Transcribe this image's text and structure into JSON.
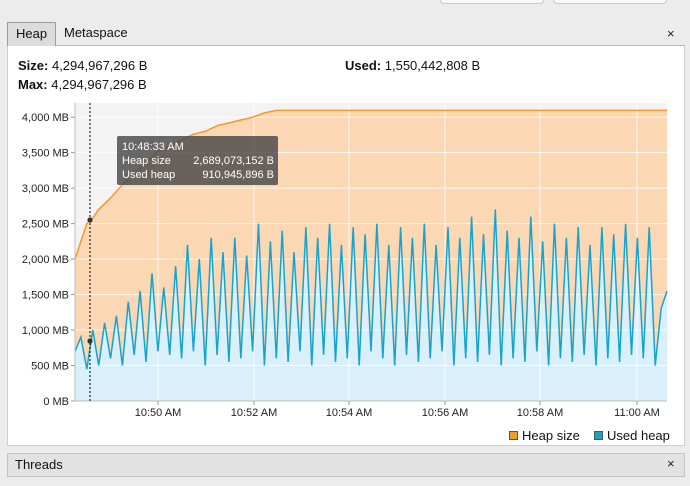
{
  "tabs": [
    {
      "label": "Heap"
    },
    {
      "label": "Metaspace"
    }
  ],
  "close_glyph": "×",
  "stats": {
    "size_label": "Size:",
    "size_value": "4,294,967,296 B",
    "max_label": "Max:",
    "max_value": "4,294,967,296 B",
    "used_label": "Used:",
    "used_value": "1,550,442,808 B"
  },
  "tooltip": {
    "time": "10:48:33 AM",
    "heap_label": "Heap size",
    "heap_value": "2,689,073,152 B",
    "used_label": "Used heap",
    "used_value": "910,945,896 B"
  },
  "legend": {
    "heap": "Heap size",
    "used": "Used heap"
  },
  "threads_label": "Threads",
  "colors": {
    "heap_line": "#f39a2b",
    "heap_fill": "#fbd7b4",
    "used_line": "#17a4cc",
    "used_fill": "#d9f0fa"
  },
  "chart_data": {
    "type": "area",
    "y_ticks": [
      "4,000 MB",
      "3,500 MB",
      "3,000 MB",
      "2,500 MB",
      "2,000 MB",
      "1,500 MB",
      "1,000 MB",
      "500 MB",
      "0 MB"
    ],
    "x_ticks": [
      "10:50 AM",
      "10:52 AM",
      "10:54 AM",
      "10:56 AM",
      "10:58 AM",
      "11:00 AM"
    ],
    "ylim": [
      0,
      4200
    ],
    "series": [
      {
        "name": "Heap size",
        "points": [
          [
            0,
            2000
          ],
          [
            1,
            2250
          ],
          [
            2,
            2500
          ],
          [
            3,
            2580
          ],
          [
            4,
            2700
          ],
          [
            6,
            2860
          ],
          [
            8,
            3050
          ],
          [
            10,
            3200
          ],
          [
            12,
            3360
          ],
          [
            14,
            3520
          ],
          [
            16,
            3600
          ],
          [
            18,
            3680
          ],
          [
            20,
            3760
          ],
          [
            22,
            3800
          ],
          [
            24,
            3880
          ],
          [
            26,
            3920
          ],
          [
            28,
            3960
          ],
          [
            30,
            4000
          ],
          [
            32,
            4060
          ],
          [
            34,
            4096
          ],
          [
            36,
            4096
          ],
          [
            38,
            4096
          ],
          [
            40,
            4096
          ],
          [
            44,
            4096
          ],
          [
            48,
            4096
          ],
          [
            52,
            4096
          ],
          [
            56,
            4096
          ],
          [
            60,
            4096
          ],
          [
            64,
            4096
          ],
          [
            68,
            4096
          ],
          [
            72,
            4096
          ],
          [
            76,
            4096
          ],
          [
            80,
            4096
          ],
          [
            84,
            4096
          ],
          [
            88,
            4096
          ],
          [
            92,
            4096
          ],
          [
            96,
            4096
          ],
          [
            100,
            4096
          ]
        ]
      },
      {
        "name": "Used heap",
        "points": [
          [
            0,
            700
          ],
          [
            1,
            900
          ],
          [
            2,
            450
          ],
          [
            3,
            1000
          ],
          [
            4,
            500
          ],
          [
            5,
            1100
          ],
          [
            6,
            600
          ],
          [
            7,
            1200
          ],
          [
            8,
            500
          ],
          [
            9,
            1400
          ],
          [
            10,
            650
          ],
          [
            11,
            1550
          ],
          [
            12,
            550
          ],
          [
            13,
            1800
          ],
          [
            14,
            700
          ],
          [
            15,
            1600
          ],
          [
            16,
            650
          ],
          [
            17,
            1900
          ],
          [
            18,
            600
          ],
          [
            19,
            2200
          ],
          [
            20,
            700
          ],
          [
            21,
            2000
          ],
          [
            22,
            500
          ],
          [
            23,
            2300
          ],
          [
            24,
            650
          ],
          [
            25,
            2100
          ],
          [
            26,
            550
          ],
          [
            27,
            2300
          ],
          [
            28,
            600
          ],
          [
            29,
            2050
          ],
          [
            30,
            700
          ],
          [
            31,
            2500
          ],
          [
            32,
            500
          ],
          [
            33,
            2250
          ],
          [
            34,
            600
          ],
          [
            35,
            2400
          ],
          [
            36,
            550
          ],
          [
            37,
            2100
          ],
          [
            38,
            700
          ],
          [
            39,
            2450
          ],
          [
            40,
            500
          ],
          [
            41,
            2300
          ],
          [
            42,
            650
          ],
          [
            43,
            2500
          ],
          [
            44,
            550
          ],
          [
            45,
            2200
          ],
          [
            46,
            600
          ],
          [
            47,
            2450
          ],
          [
            48,
            500
          ],
          [
            49,
            2350
          ],
          [
            50,
            700
          ],
          [
            51,
            2500
          ],
          [
            52,
            600
          ],
          [
            53,
            2200
          ],
          [
            54,
            500
          ],
          [
            55,
            2450
          ],
          [
            56,
            650
          ],
          [
            57,
            2300
          ],
          [
            58,
            550
          ],
          [
            59,
            2500
          ],
          [
            60,
            600
          ],
          [
            61,
            2200
          ],
          [
            62,
            700
          ],
          [
            63,
            2450
          ],
          [
            64,
            500
          ],
          [
            65,
            2300
          ],
          [
            66,
            600
          ],
          [
            67,
            2600
          ],
          [
            68,
            550
          ],
          [
            69,
            2350
          ],
          [
            70,
            650
          ],
          [
            71,
            2700
          ],
          [
            72,
            500
          ],
          [
            73,
            2400
          ],
          [
            74,
            600
          ],
          [
            75,
            2300
          ],
          [
            76,
            550
          ],
          [
            77,
            2600
          ],
          [
            78,
            700
          ],
          [
            79,
            2250
          ],
          [
            80,
            500
          ],
          [
            81,
            2500
          ],
          [
            82,
            600
          ],
          [
            83,
            2300
          ],
          [
            84,
            550
          ],
          [
            85,
            2450
          ],
          [
            86,
            650
          ],
          [
            87,
            2200
          ],
          [
            88,
            500
          ],
          [
            89,
            2450
          ],
          [
            90,
            600
          ],
          [
            91,
            2350
          ],
          [
            92,
            550
          ],
          [
            93,
            2500
          ],
          [
            94,
            650
          ],
          [
            95,
            2300
          ],
          [
            96,
            600
          ],
          [
            97,
            2450
          ],
          [
            98,
            500
          ],
          [
            99,
            1300
          ],
          [
            100,
            1550
          ]
        ]
      }
    ],
    "legend_position": "bottom-right",
    "grid": true
  }
}
